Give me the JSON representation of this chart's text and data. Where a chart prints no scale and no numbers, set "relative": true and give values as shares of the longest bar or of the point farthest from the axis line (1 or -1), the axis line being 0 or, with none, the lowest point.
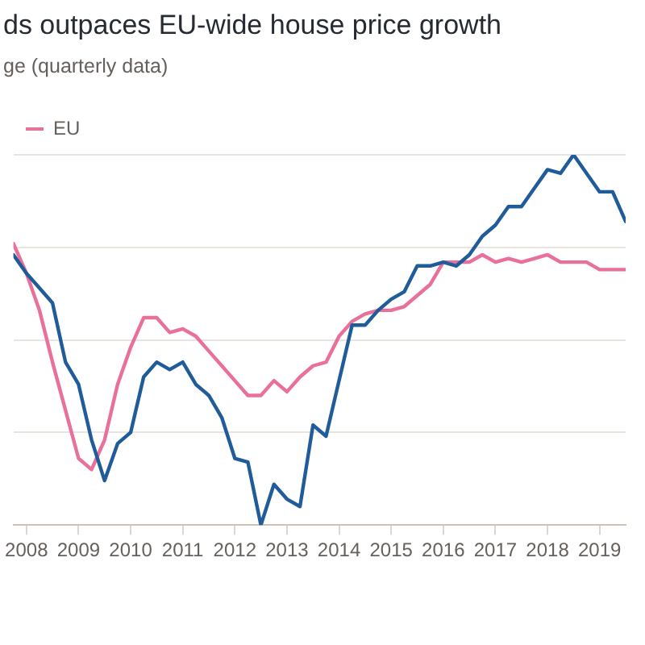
{
  "chart_data": {
    "type": "line",
    "title": "ds outpaces EU-wide house price growth",
    "subtitle": "ge (quarterly data)",
    "relative": true,
    "grid": "y",
    "legend": "top left",
    "marker": "none",
    "line_style": "solid",
    "x": [
      2007.75,
      2008,
      2008.25,
      2008.5,
      2008.75,
      2009,
      2009.25,
      2009.5,
      2009.75,
      2010,
      2010.25,
      2010.5,
      2010.75,
      2011,
      2011.25,
      2011.5,
      2011.75,
      2012,
      2012.25,
      2012.5,
      2012.75,
      2013,
      2013.25,
      2013.5,
      2013.75,
      2014,
      2014.25,
      2014.5,
      2014.75,
      2015,
      2015.25,
      2015.5,
      2015.75,
      2016,
      2016.25,
      2016.5,
      2016.75,
      2017,
      2017.25,
      2017.5,
      2017.75,
      2018,
      2018.25,
      2018.5,
      2018.75,
      2019,
      2019.25,
      2019.5
    ],
    "xlim": [
      2007.75,
      2019.5
    ],
    "xticks": [
      2008,
      2009,
      2010,
      2011,
      2012,
      2013,
      2014,
      2015,
      2016,
      2017,
      2018,
      2019
    ],
    "series": [
      {
        "color": "#1f5c99",
        "values": [
          0.73,
          0.68,
          0.64,
          0.6,
          0.44,
          0.38,
          0.23,
          0.12,
          0.22,
          0.25,
          0.4,
          0.44,
          0.42,
          0.44,
          0.38,
          0.35,
          0.29,
          0.18,
          0.17,
          0,
          0.11,
          0.07,
          0.05,
          0.27,
          0.24,
          0.39,
          0.54,
          0.54,
          0.58,
          0.61,
          0.63,
          0.7,
          0.7,
          0.71,
          0.7,
          0.73,
          0.78,
          0.81,
          0.86,
          0.86,
          0.91,
          0.96,
          0.95,
          1,
          0.95,
          0.9,
          0.9,
          0.82
        ]
      },
      {
        "name": "EU",
        "color": "#e8709a",
        "values": [
          0.76,
          0.68,
          0.58,
          0.44,
          0.31,
          0.18,
          0.15,
          0.23,
          0.38,
          0.48,
          0.56,
          0.56,
          0.52,
          0.53,
          0.51,
          0.47,
          0.43,
          0.39,
          0.35,
          0.35,
          0.39,
          0.36,
          0.4,
          0.43,
          0.44,
          0.51,
          0.55,
          0.57,
          0.58,
          0.58,
          0.59,
          0.62,
          0.65,
          0.71,
          0.71,
          0.71,
          0.73,
          0.71,
          0.72,
          0.71,
          0.72,
          0.73,
          0.71,
          0.71,
          0.71,
          0.69,
          0.69,
          0.69
        ]
      }
    ]
  }
}
